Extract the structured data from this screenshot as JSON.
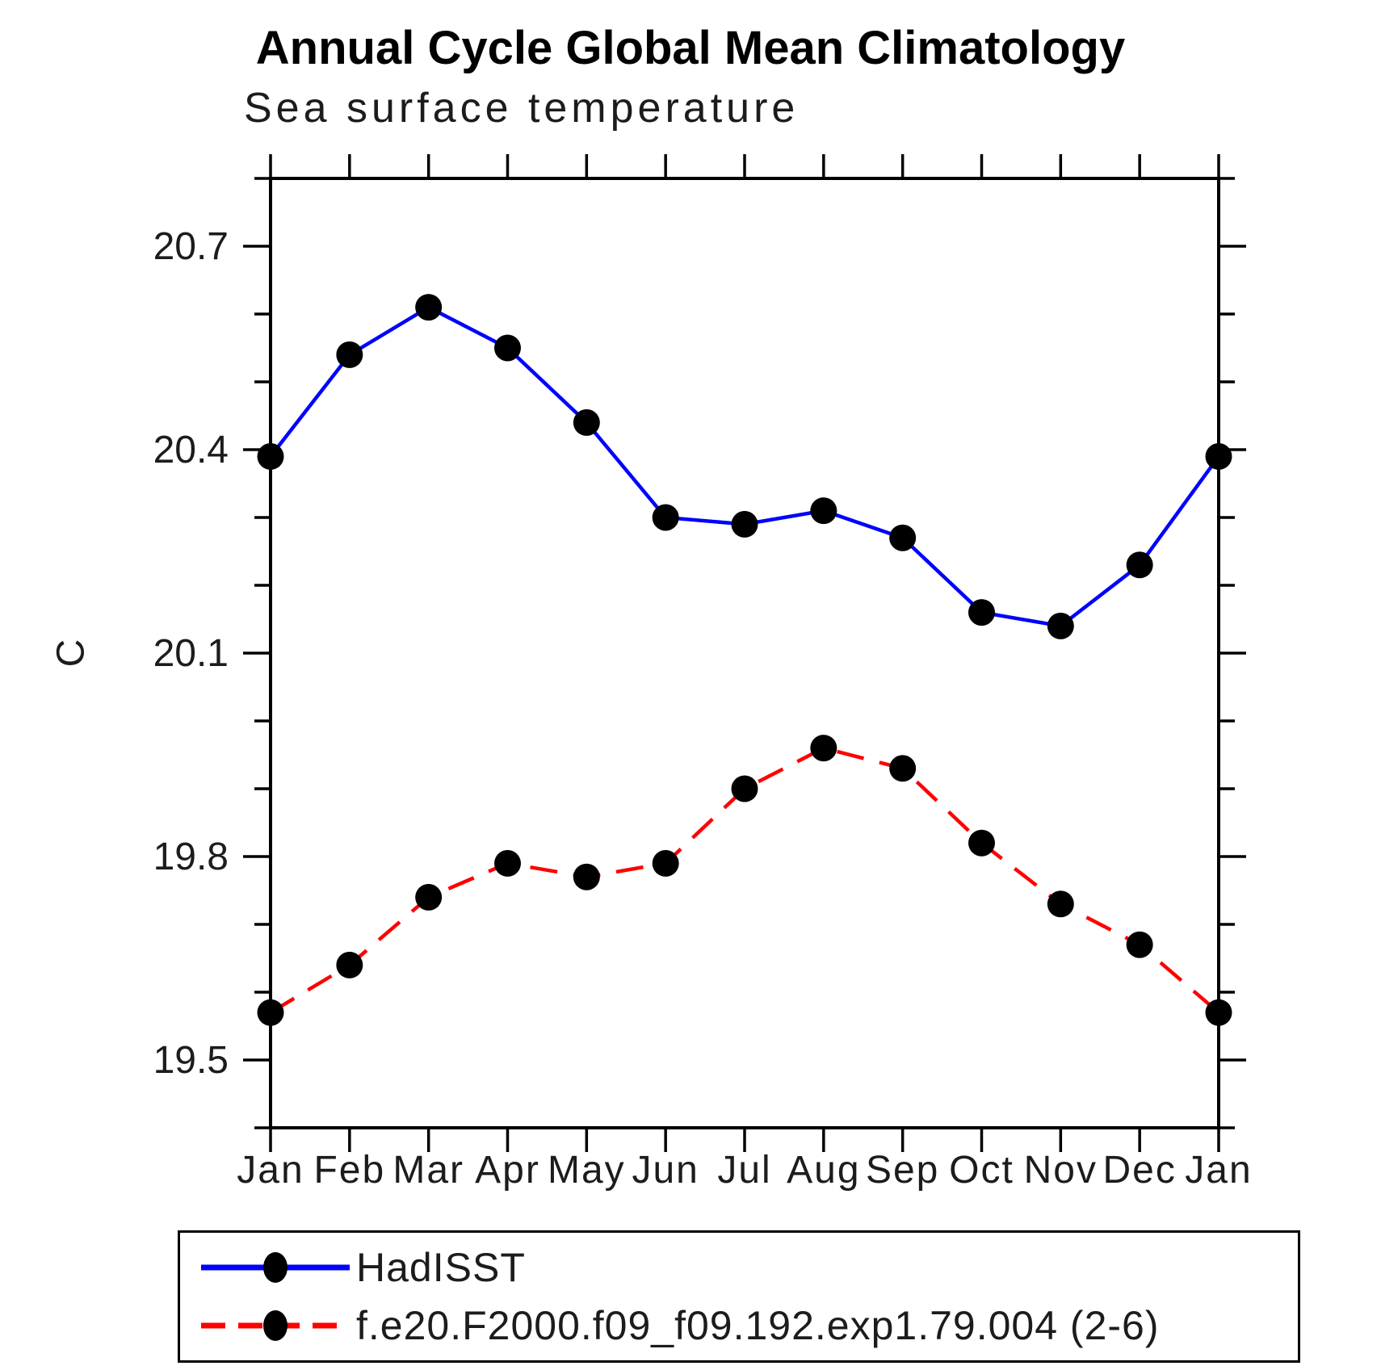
{
  "chart": {
    "title": "Annual Cycle Global Mean Climatology",
    "subtitle": "Sea surface temperature",
    "ylabel": "C"
  },
  "chart_data": {
    "type": "line",
    "categories": [
      "Jan",
      "Feb",
      "Mar",
      "Apr",
      "May",
      "Jun",
      "Jul",
      "Aug",
      "Sep",
      "Oct",
      "Nov",
      "Dec",
      "Jan"
    ],
    "series": [
      {
        "name": "HadISST",
        "color": "#0000ff",
        "line_style": "solid",
        "marker": "circle",
        "marker_color": "#000000",
        "values": [
          20.39,
          20.54,
          20.61,
          20.55,
          20.44,
          20.3,
          20.29,
          20.31,
          20.27,
          20.16,
          20.14,
          20.23,
          20.39
        ]
      },
      {
        "name": "f.e20.F2000.f09_f09.192.exp1.79.004 (2-6)",
        "color": "#ff0000",
        "line_style": "dashed",
        "marker": "circle",
        "marker_color": "#000000",
        "values": [
          19.57,
          19.64,
          19.74,
          19.79,
          19.77,
          19.79,
          19.9,
          19.96,
          19.93,
          19.82,
          19.73,
          19.67,
          19.57
        ]
      }
    ],
    "ylabel": "C",
    "xlabel": "",
    "ylim": [
      19.4,
      20.8
    ],
    "yticks_major": [
      19.5,
      19.8,
      20.1,
      20.4,
      20.7
    ],
    "ytick_minor_step": 0.1,
    "grid": false,
    "legend_position": "bottom",
    "frame_color": "#000000",
    "text_color": "#1c1c1c"
  }
}
